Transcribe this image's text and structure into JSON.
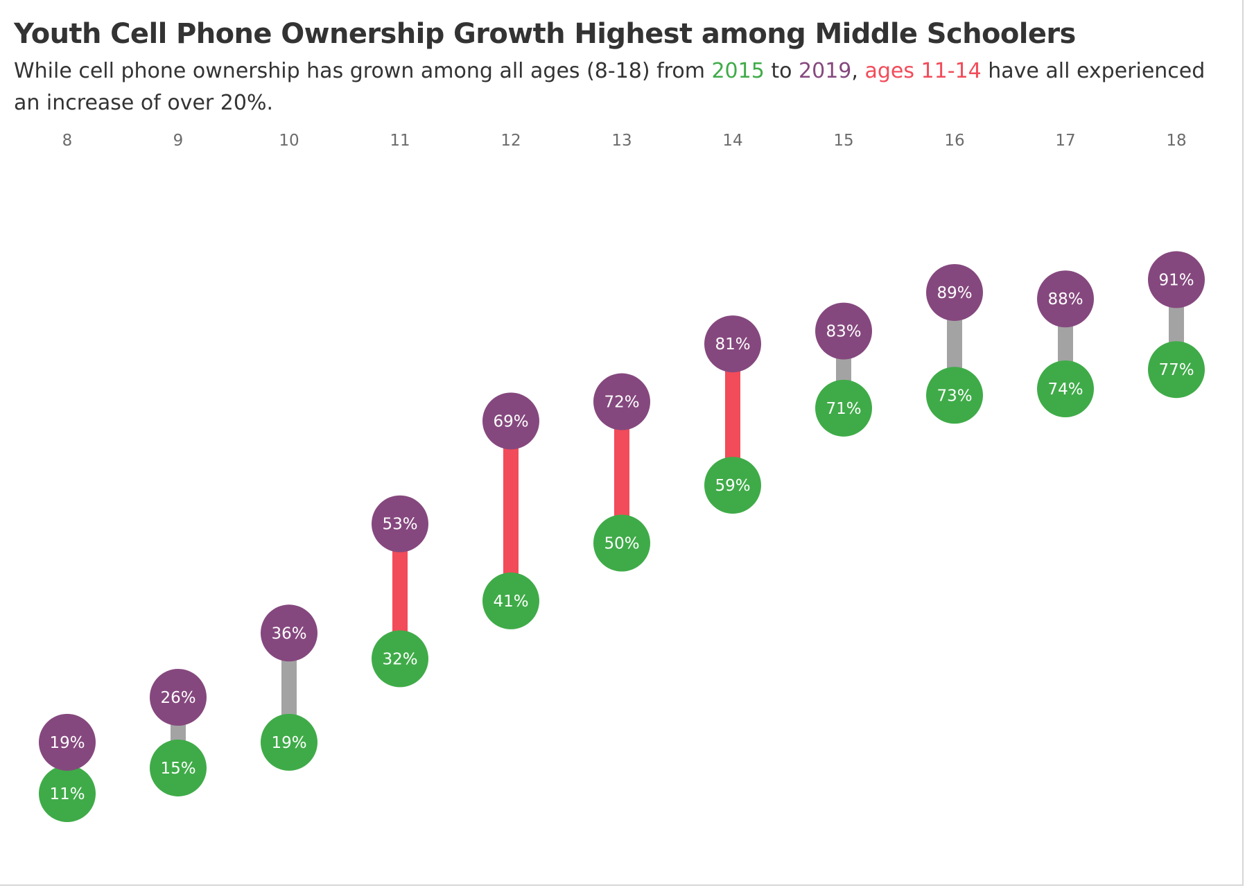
{
  "title": "Youth Cell Phone Ownership Growth Highest among Middle Schoolers",
  "subtitle": {
    "part1": "While cell phone ownership has grown among all ages (8-18) from ",
    "year_start": "2015",
    "part2": " to ",
    "year_end": "2019",
    "part3": ", ",
    "highlight": "ages 11-14",
    "part4": " have all experienced an increase of over 20%."
  },
  "colors": {
    "y2015": "#3fab48",
    "y2019": "#85487e",
    "highlight": "#f24b59",
    "connector": "#a3a3a3",
    "text": "#333333"
  },
  "chart_data": {
    "type": "dumbbell",
    "x_label": "",
    "y_label": "",
    "y_unit": "%",
    "ylim": [
      0,
      100
    ],
    "categories": [
      "8",
      "9",
      "10",
      "11",
      "12",
      "13",
      "14",
      "15",
      "16",
      "17",
      "18"
    ],
    "series": [
      {
        "name": "2015",
        "values": [
          11,
          15,
          19,
          32,
          41,
          50,
          59,
          71,
          73,
          74,
          77
        ]
      },
      {
        "name": "2019",
        "values": [
          19,
          26,
          36,
          53,
          69,
          72,
          81,
          83,
          89,
          88,
          91
        ]
      }
    ],
    "highlighted_categories": [
      "11",
      "12",
      "13",
      "14"
    ],
    "x_ticks_position": "top",
    "grid": false,
    "legend": "none"
  }
}
